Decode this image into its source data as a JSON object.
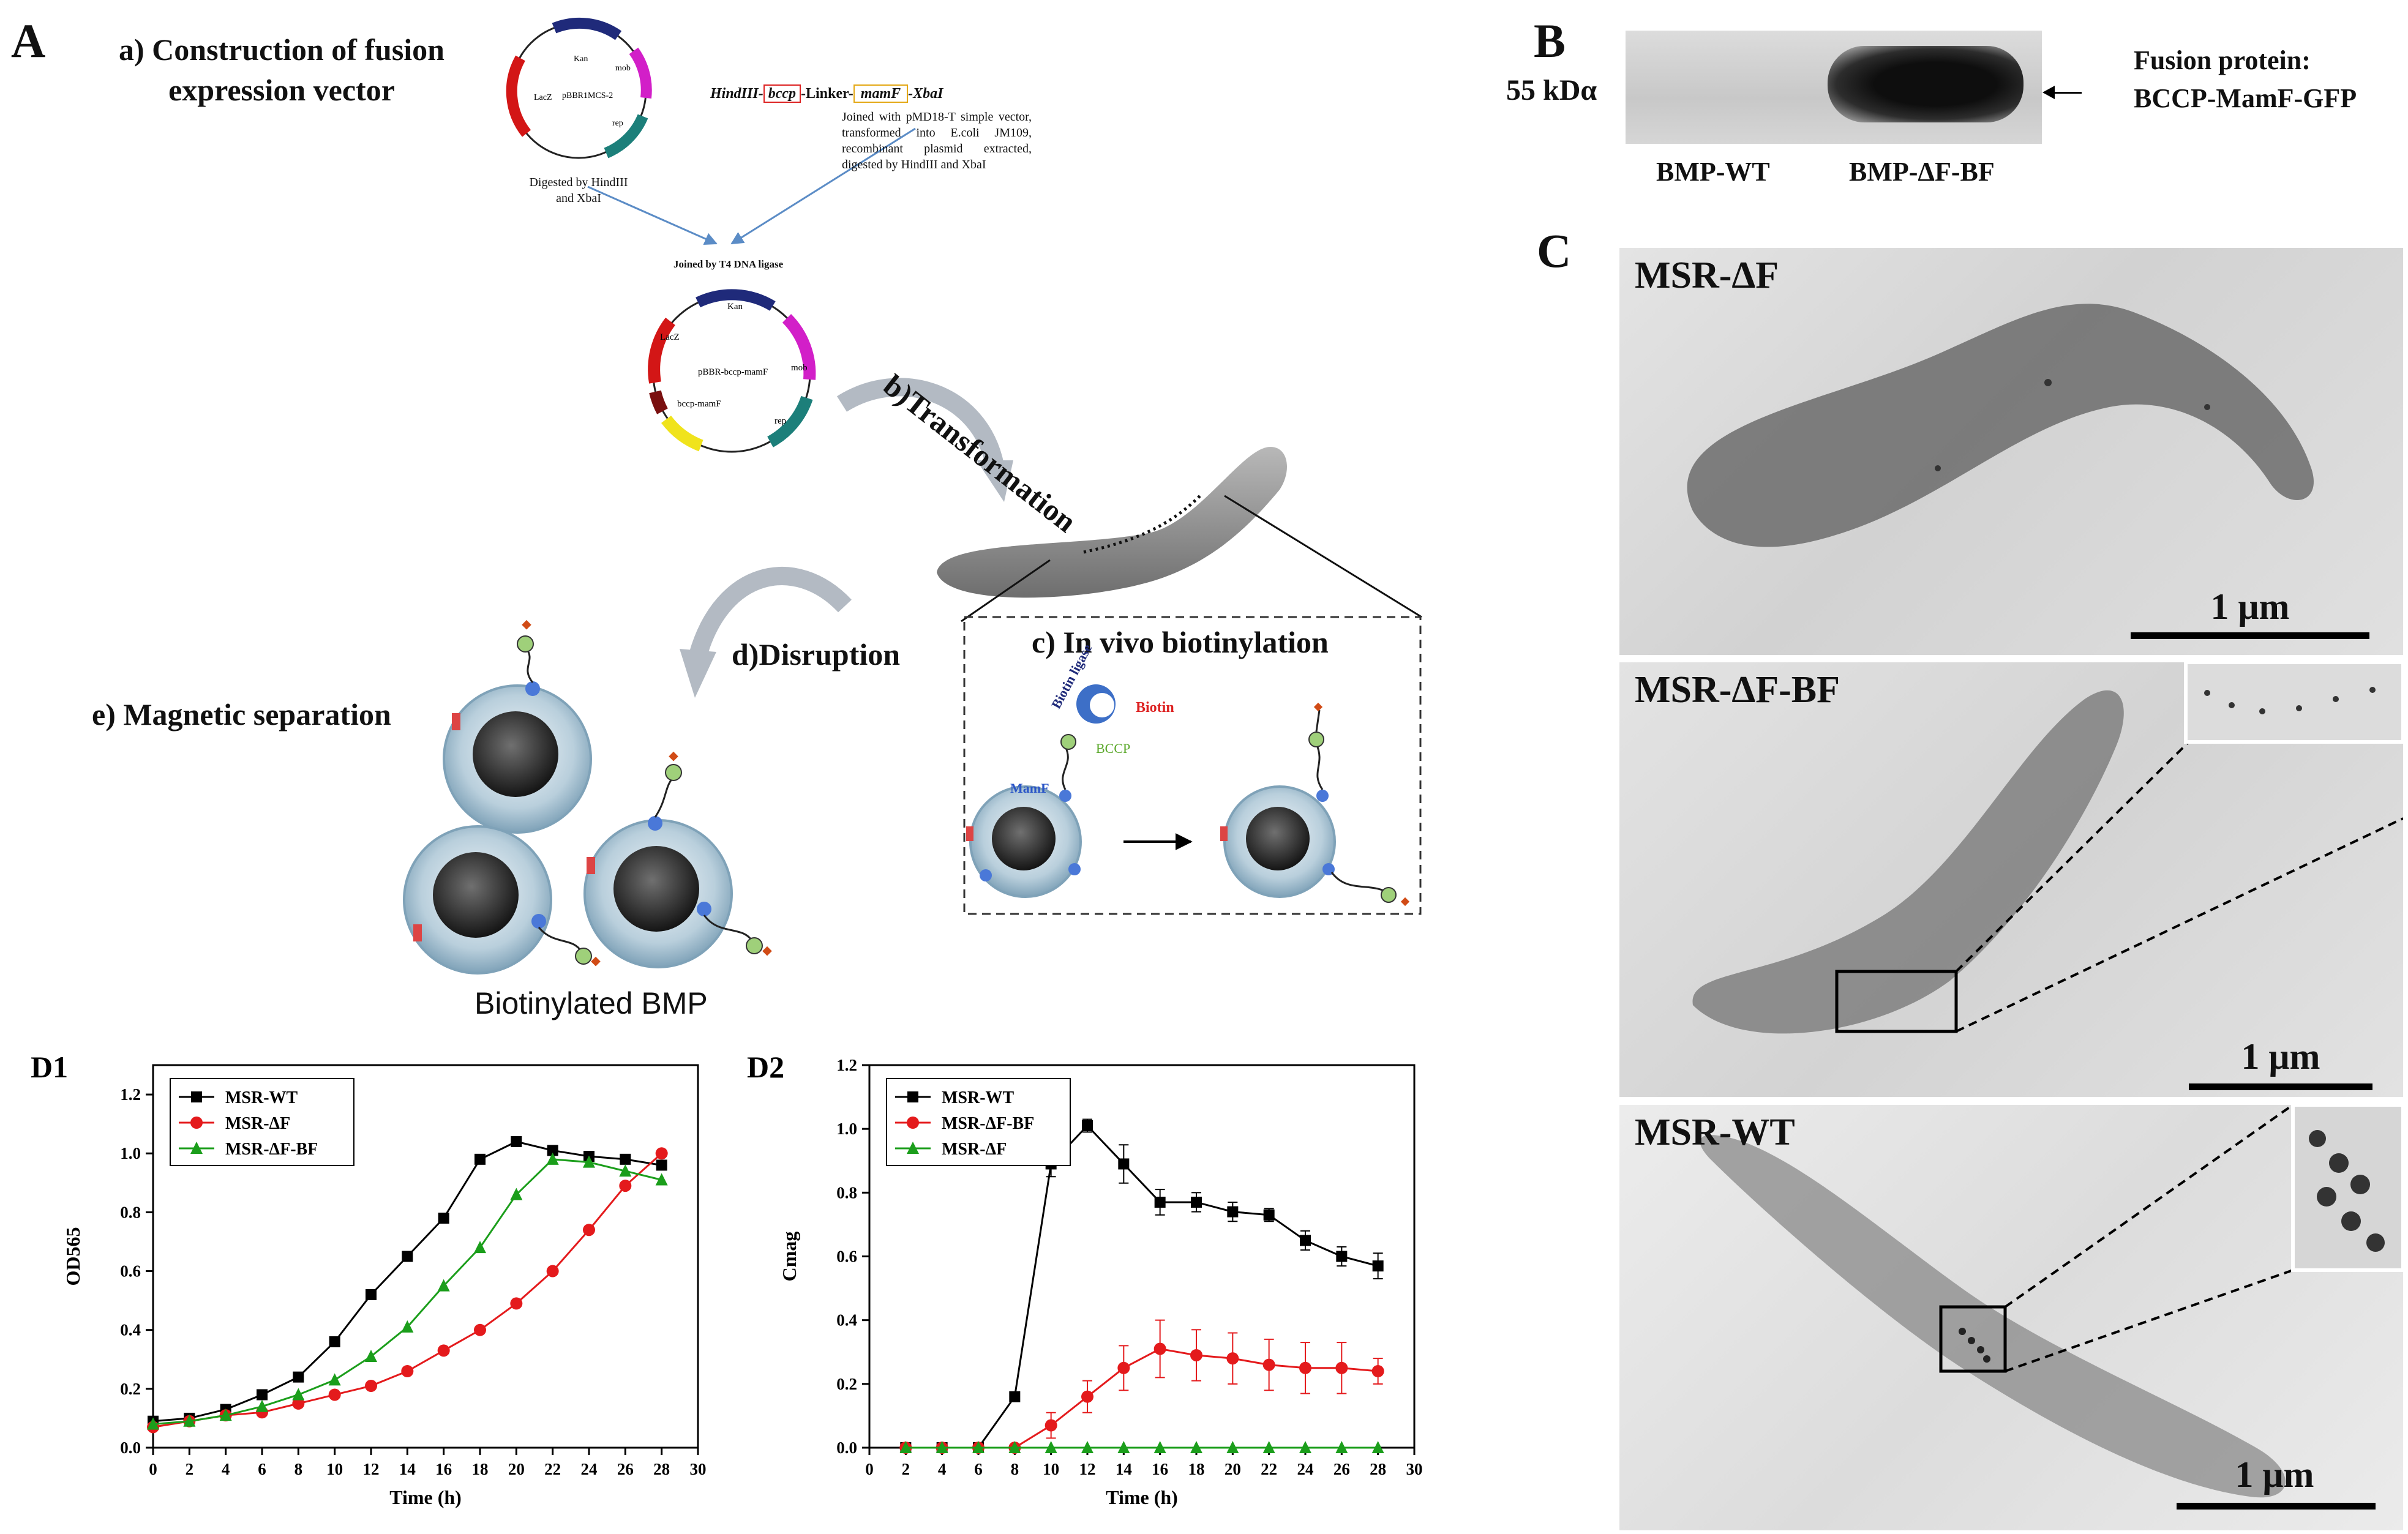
{
  "panel_a": {
    "letter": "A",
    "step_a": "a) Construction of fusion expression vector",
    "step_b": "b)Transformation",
    "step_c": "c) In vivo biotinylation",
    "step_d": "d)Disruption",
    "step_e": "e) Magnetic separation",
    "plasmid1": {
      "name": "pBBR1MCS-2",
      "genes": [
        "Kan",
        "mob",
        "rep",
        "LacZ"
      ],
      "digest_label": "Digested by HindIII and XbaI"
    },
    "construct": {
      "hind": "HindIII-",
      "bccp": "bccp",
      "linker": "-Linker-",
      "mamf": "mamF",
      "xba": "-XbaI"
    },
    "construct_note": "Joined with pMD18-T simple vector, transformed into E.coli JM109, recombinant plasmid extracted, digested by HindIII and XbaI",
    "ligase_label": "Joined by T4 DNA ligase",
    "plasmid2": {
      "name": "pBBR-bccp-mamF",
      "genes": [
        "Kan",
        "mob",
        "rep",
        "LacZ",
        "bccp-mamF"
      ]
    },
    "biotin_labels": {
      "ligase": "Biotin ligase",
      "biotin": "Biotin",
      "bccp": "BCCP",
      "mamf": "MamF"
    },
    "bmp_caption": "Biotinylated BMP"
  },
  "panel_b": {
    "letter": "B",
    "marker": "55 kDα",
    "lanes": [
      "BMP-WT",
      "BMP-ΔF-BF"
    ],
    "band_label_1": "Fusion protein:",
    "band_label_2": "BCCP-MamF-GFP"
  },
  "panel_c": {
    "letter": "C",
    "images": [
      {
        "label": "MSR-ΔF",
        "scale": "1 μm"
      },
      {
        "label": "MSR-ΔF-BF",
        "scale": "1 μm"
      },
      {
        "label": "MSR-WT",
        "scale": "1 μm"
      }
    ]
  },
  "chart_data": [
    {
      "id": "D1",
      "type": "line",
      "panel_label": "D1",
      "xlabel": "Time (h)",
      "ylabel": "OD565",
      "xlim": [
        0,
        30
      ],
      "ylim": [
        0,
        1.3
      ],
      "xticks": [
        "0",
        "2",
        "4",
        "6",
        "8",
        "10",
        "12",
        "14",
        "16",
        "18",
        "20",
        "22",
        "24",
        "26",
        "28",
        "30"
      ],
      "yticks": [
        "0.0",
        "0.2",
        "0.4",
        "0.6",
        "0.8",
        "1.0",
        "1.2"
      ],
      "legend_position": "top-left",
      "x": [
        0,
        2,
        4,
        6,
        8,
        10,
        12,
        14,
        16,
        18,
        20,
        22,
        24,
        26,
        28
      ],
      "series": [
        {
          "name": "MSR-WT",
          "color": "#000000",
          "marker": "square",
          "values": [
            0.09,
            0.1,
            0.13,
            0.18,
            0.24,
            0.36,
            0.52,
            0.65,
            0.78,
            0.98,
            1.04,
            1.01,
            0.99,
            0.98,
            0.96
          ]
        },
        {
          "name": "MSR-ΔF",
          "color": "#e41a1c",
          "marker": "circle",
          "values": [
            0.07,
            0.09,
            0.11,
            0.12,
            0.15,
            0.18,
            0.21,
            0.26,
            0.33,
            0.4,
            0.49,
            0.6,
            0.74,
            0.89,
            1.0
          ]
        },
        {
          "name": "MSR-ΔF-BF",
          "color": "#1b9e1b",
          "marker": "triangle",
          "values": [
            0.08,
            0.09,
            0.11,
            0.14,
            0.18,
            0.23,
            0.31,
            0.41,
            0.55,
            0.68,
            0.86,
            0.98,
            0.97,
            0.94,
            0.91
          ]
        }
      ]
    },
    {
      "id": "D2",
      "type": "line",
      "panel_label": "D2",
      "xlabel": "Time (h)",
      "ylabel": "Cmag",
      "xlim": [
        0,
        30
      ],
      "ylim": [
        0,
        1.2
      ],
      "xticks": [
        "0",
        "2",
        "4",
        "6",
        "8",
        "10",
        "12",
        "14",
        "16",
        "18",
        "20",
        "22",
        "24",
        "26",
        "28",
        "30"
      ],
      "yticks": [
        "0.0",
        "0.2",
        "0.4",
        "0.6",
        "0.8",
        "1.0",
        "1.2"
      ],
      "legend_position": "top-left",
      "x": [
        2,
        4,
        6,
        8,
        10,
        12,
        14,
        16,
        18,
        20,
        22,
        24,
        26,
        28
      ],
      "series": [
        {
          "name": "MSR-WT",
          "color": "#000000",
          "marker": "square",
          "values": [
            0,
            0,
            0,
            0.16,
            0.89,
            1.01,
            0.89,
            0.77,
            0.77,
            0.74,
            0.73,
            0.65,
            0.6,
            0.57
          ],
          "errors": [
            0,
            0,
            0,
            0.01,
            0.04,
            0.02,
            0.06,
            0.04,
            0.03,
            0.03,
            0.02,
            0.03,
            0.03,
            0.04
          ]
        },
        {
          "name": "MSR-ΔF-BF",
          "color": "#e41a1c",
          "marker": "circle",
          "values": [
            0,
            0,
            0,
            0,
            0.07,
            0.16,
            0.25,
            0.31,
            0.29,
            0.28,
            0.26,
            0.25,
            0.25,
            0.24
          ],
          "errors": [
            0,
            0,
            0,
            0,
            0.04,
            0.05,
            0.07,
            0.09,
            0.08,
            0.08,
            0.08,
            0.08,
            0.08,
            0.04
          ]
        },
        {
          "name": "MSR-ΔF",
          "color": "#1b9e1b",
          "marker": "triangle",
          "values": [
            0,
            0,
            0,
            0,
            0,
            0,
            0,
            0,
            0,
            0,
            0,
            0,
            0,
            0
          ],
          "errors": [
            0,
            0,
            0,
            0,
            0,
            0,
            0,
            0,
            0,
            0,
            0,
            0,
            0,
            0
          ]
        }
      ]
    }
  ]
}
